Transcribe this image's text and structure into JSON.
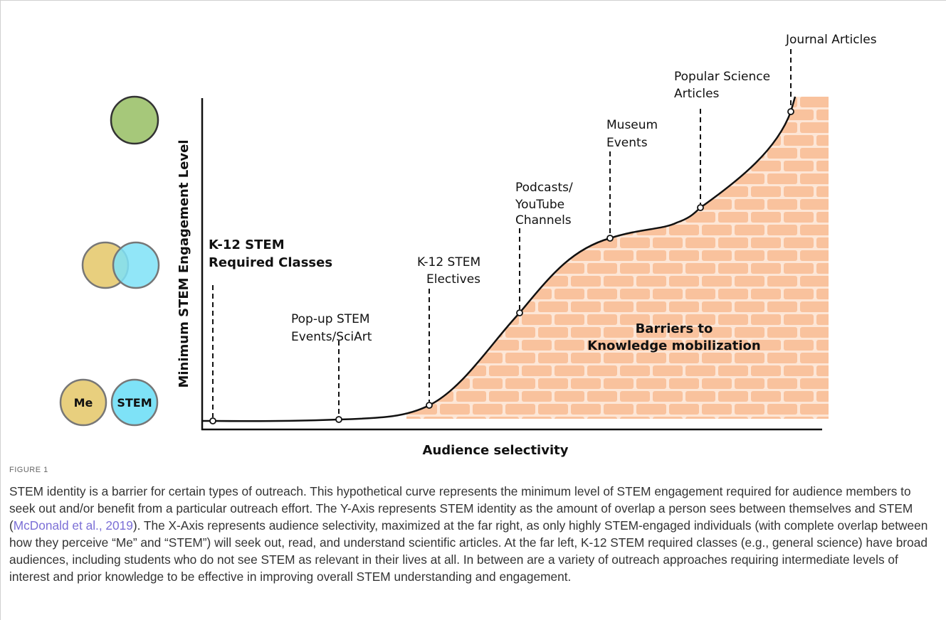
{
  "figure": {
    "y_axis_label": "Minimum STEM Engagement Level",
    "x_axis_label": "Audience selectivity",
    "identity_circles": {
      "me": "Me",
      "stem": "STEM"
    },
    "outreach": [
      {
        "lines": [
          "K-12 STEM",
          "Required Classes"
        ]
      },
      {
        "lines": [
          "Pop-up STEM",
          "Events/SciArt"
        ]
      },
      {
        "lines": [
          "K-12 STEM",
          "Electives"
        ]
      },
      {
        "lines": [
          "Podcasts/",
          "YouTube",
          "Channels"
        ]
      },
      {
        "lines": [
          "Museum",
          "Events"
        ]
      },
      {
        "lines": [
          "Popular Science",
          "Articles"
        ]
      },
      {
        "lines": [
          "Journal Articles"
        ]
      }
    ],
    "barrier": [
      "Barriers to",
      "Knowledge mobilization"
    ]
  },
  "caption": {
    "label": "FIGURE 1",
    "text_before": "STEM identity is a barrier for certain types of outreach. This hypothetical curve represents the minimum level of STEM engagement required for audience members to seek out and/or benefit from a particular outreach effort. The Y-Axis represents STEM identity as the amount of overlap a person sees between themselves and STEM (",
    "citation": "McDonald et al., 2019",
    "text_after": "). The X-Axis represents audience selectivity, maximized at the far right, as only highly STEM-engaged individuals (with complete overlap between how they perceive “Me” and “STEM”) will seek out, read, and understand scientific articles. At the far left, K-12 STEM required classes (e.g., general science) have broad audiences, including students who do not see STEM as relevant in their lives at all. In between are a variety of outreach approaches requiring intermediate levels of interest and prior knowledge to be effective in improving overall STEM understanding and engagement."
  }
}
